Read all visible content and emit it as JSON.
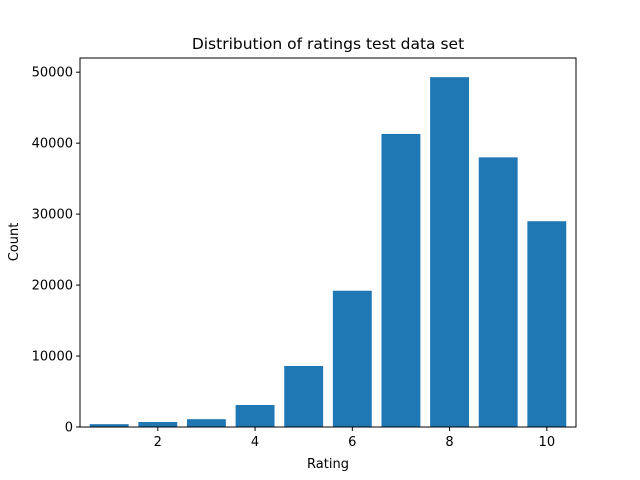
{
  "chart_data": {
    "type": "bar",
    "title": "Distribution of ratings test data set",
    "xlabel": "Rating",
    "ylabel": "Count",
    "categories": [
      1,
      2,
      3,
      4,
      5,
      6,
      7,
      8,
      9,
      10
    ],
    "values": [
      400,
      700,
      1100,
      3100,
      8600,
      19200,
      41300,
      49300,
      38000,
      29000
    ],
    "xlim": [
      0.4,
      10.6
    ],
    "ylim": [
      0,
      52000
    ],
    "xticks": [
      2,
      4,
      6,
      8,
      10
    ],
    "yticks": [
      0,
      10000,
      20000,
      30000,
      40000,
      50000
    ],
    "bar_color": "#1f77b4",
    "grid": false
  }
}
